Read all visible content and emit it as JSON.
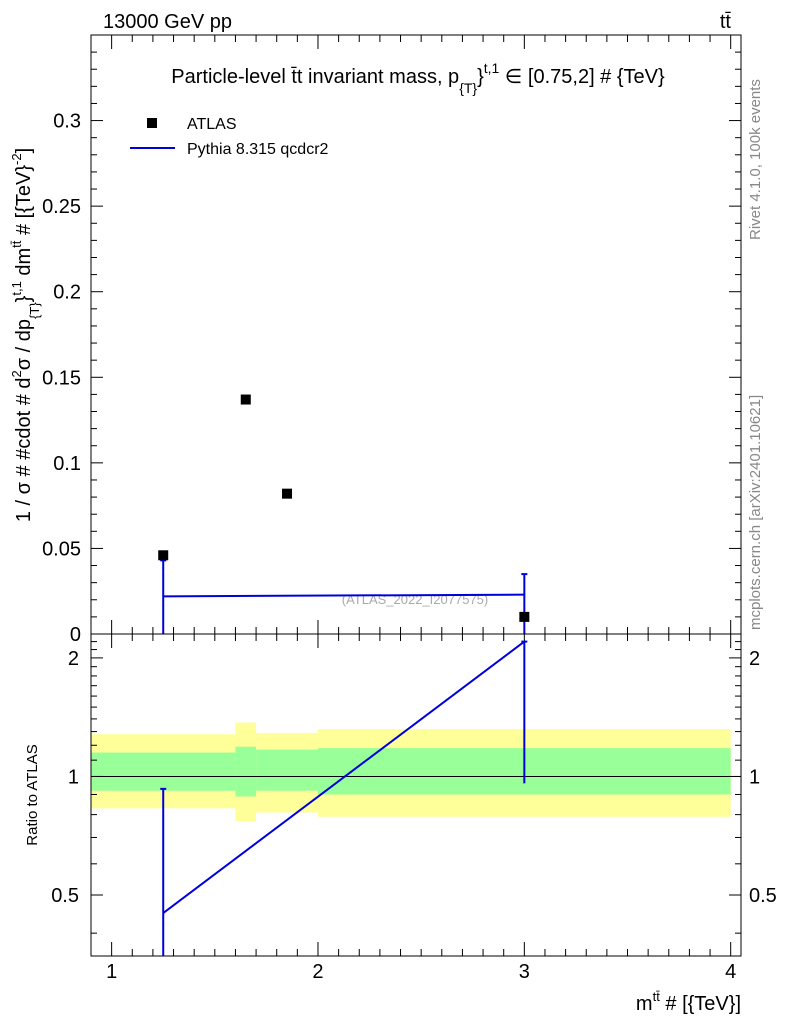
{
  "header": {
    "energy": "13000 GeV pp",
    "process": "tt̄"
  },
  "side_labels": {
    "rivet": "Rivet 4.1.0,  100k events",
    "source": "mcplots.cern.ch [arXiv:2401.10621]"
  },
  "chart_data": [
    {
      "type": "scatter",
      "panel": "main",
      "title": "Particle-level t̄t invariant mass, p_{T}^{t,1} ∈ [0.75,2] # {TeV}",
      "title_parts": {
        "main": "Particle-level t̄t invariant mass, p",
        "sub": "{T}",
        "sup": "}",
        "sup2": "t,1",
        "rest": "∈ [0.75,2] # {TeV}"
      },
      "ylabel": "1 / σ # #cdot # d²σ / dp_{T}^{t,1} dm^{tt̄} # [{TeV}^{-2}]",
      "ylabel_parts": {
        "a": "1 / σ # #cdot # d",
        "b": "2",
        "c": "σ / dp",
        "d": "{T}",
        "e": "}",
        "f": "t,1",
        "g": " dm",
        "h": "tt̄",
        "i": " # [{TeV}",
        "j": "-2",
        "k": "]"
      },
      "watermark": "(ATLAS_2022_I2077575)",
      "xlim": [
        0.9,
        4.05
      ],
      "ylim": [
        0,
        0.35
      ],
      "yticks": [
        0,
        0.05,
        0.1,
        0.15,
        0.2,
        0.25,
        0.3
      ],
      "ytick_labels": [
        "0",
        "0.05",
        "0.1",
        "0.15",
        "0.2",
        "0.25",
        "0.3"
      ],
      "legend_position": "top-left",
      "series": [
        {
          "name": "ATLAS",
          "kind": "markers",
          "color": "#000000",
          "x": [
            1.25,
            1.65,
            1.85,
            3.0
          ],
          "y": [
            0.046,
            0.137,
            0.082,
            0.01
          ]
        },
        {
          "name": "Pythia 8.315 qcdcr2",
          "kind": "line",
          "color": "#0000dd",
          "x": [
            1.25,
            3.0
          ],
          "y": [
            0.022,
            0.023
          ],
          "errors": [
            {
              "x": 1.25,
              "low": 0.0,
              "high": 0.043
            },
            {
              "x": 3.0,
              "low": 0.0,
              "high": 0.035
            }
          ]
        }
      ]
    },
    {
      "type": "line",
      "panel": "ratio",
      "ylabel": "Ratio to ATLAS",
      "xlabel": "m^{tt̄} # [{TeV}]",
      "xlabel_parts": {
        "a": "m",
        "b": "tt̄",
        "c": " # [{TeV}]"
      },
      "xlim": [
        0.9,
        4.05
      ],
      "ylim": [
        0.35,
        2.3
      ],
      "xticks": [
        1,
        2,
        3,
        4
      ],
      "xtick_labels": [
        "1",
        "2",
        "3",
        "4"
      ],
      "yticks": [
        0.5,
        1,
        2
      ],
      "ytick_labels": [
        "0.5",
        "1",
        "2"
      ],
      "reference_line": 1,
      "bands": [
        {
          "x0": 0.9,
          "x1": 1.6,
          "yellow": [
            0.83,
            1.28
          ],
          "green": [
            0.92,
            1.15
          ]
        },
        {
          "x0": 1.6,
          "x1": 1.7,
          "yellow": [
            0.77,
            1.37
          ],
          "green": [
            0.89,
            1.19
          ]
        },
        {
          "x0": 1.7,
          "x1": 2.0,
          "yellow": [
            0.81,
            1.29
          ],
          "green": [
            0.92,
            1.17
          ]
        },
        {
          "x0": 2.0,
          "x1": 4.0,
          "yellow": [
            0.79,
            1.32
          ],
          "green": [
            0.9,
            1.18
          ]
        }
      ],
      "band_colors": {
        "yellow": "#ffff99",
        "green": "#99ff99"
      },
      "series": [
        {
          "name": "Pythia 8.315 qcdcr2",
          "color": "#0000dd",
          "x": [
            1.25,
            3.0
          ],
          "y": [
            0.45,
            2.2
          ],
          "errors": [
            {
              "x": 1.25,
              "low": 0.35,
              "high": 0.93
            },
            {
              "x": 3.0,
              "low": 0.96,
              "high": 2.2
            }
          ]
        }
      ]
    }
  ]
}
